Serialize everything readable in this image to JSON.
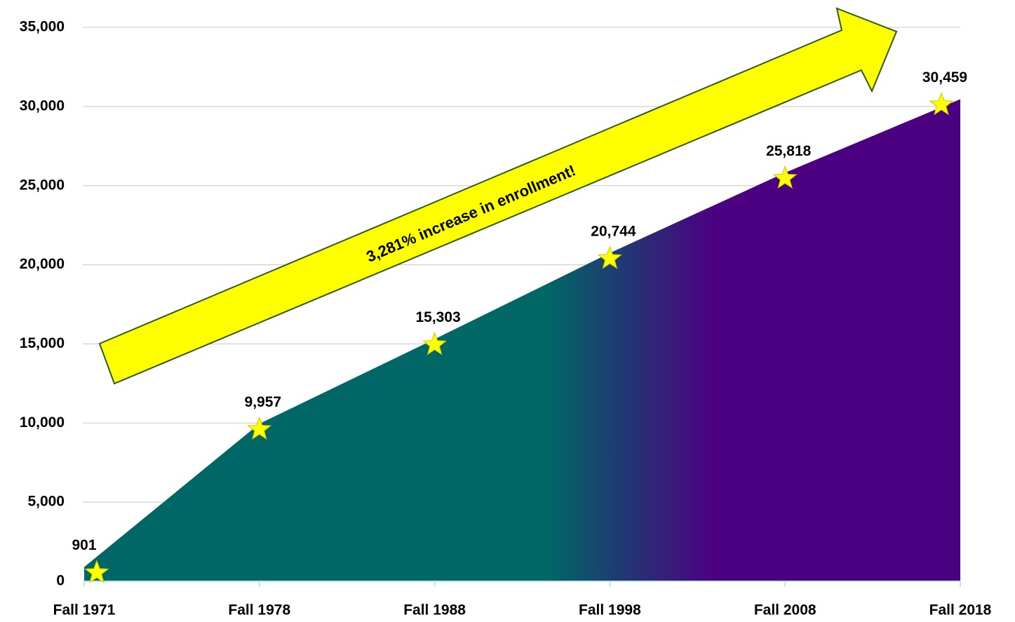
{
  "chart_data": {
    "type": "area",
    "categories": [
      "Fall 1971",
      "Fall 1978",
      "Fall 1988",
      "Fall 1998",
      "Fall 2008",
      "Fall 2018"
    ],
    "values": [
      901,
      9957,
      15303,
      20744,
      25818,
      30459
    ],
    "value_labels": [
      "901",
      "9,957",
      "15,303",
      "20,744",
      "25,818",
      "30,459"
    ],
    "colors": [
      "#006666",
      "#4b0082"
    ],
    "marker_color": "#ffff00",
    "ylim": [
      0,
      35000
    ],
    "yticks": [
      0,
      {
        "value": 5000,
        "label": "5,000"
      },
      {
        "value": 10000,
        "label": "10,000"
      },
      {
        "value": 15000,
        "label": "15,000"
      },
      {
        "value": 20000,
        "label": "20,000"
      },
      {
        "value": 25000,
        "label": "25,000"
      },
      {
        "value": 30000,
        "label": "30,000"
      },
      {
        "value": 35000,
        "label": "35,000"
      }
    ],
    "grid": true,
    "annotation": "3,281% increase in enrollment!"
  }
}
